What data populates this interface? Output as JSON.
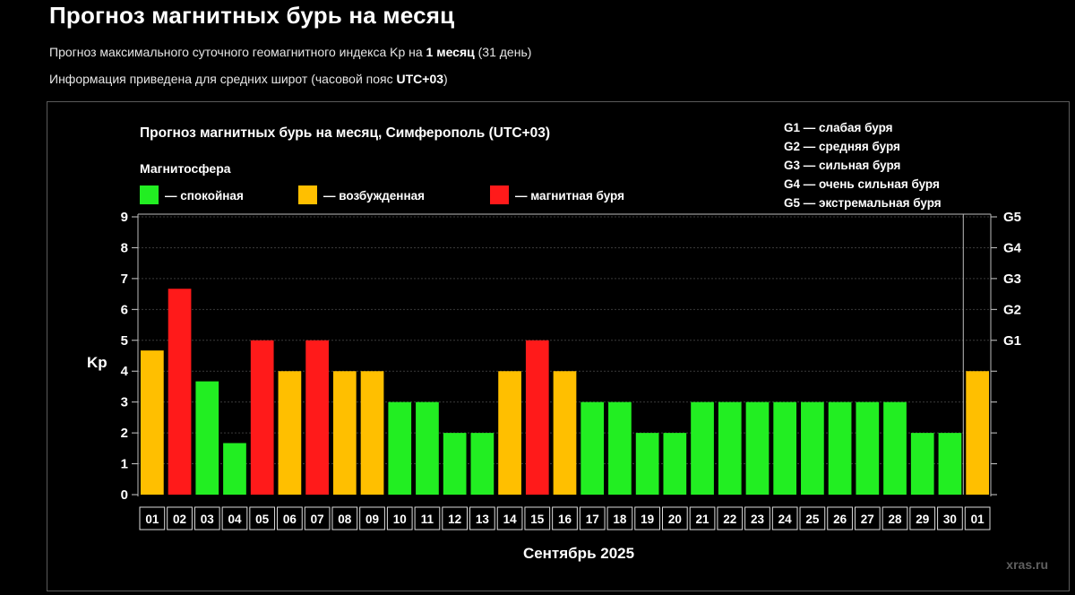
{
  "header": {
    "title": "Прогноз магнитных бурь на месяц",
    "subtitle1_prefix": "Прогноз максимального суточного геомагнитного индекса Kp на ",
    "subtitle1_bold": "1 месяц",
    "subtitle1_suffix": " (31 день)",
    "subtitle2_prefix": "Информация приведена для средних широт (часовой пояс ",
    "subtitle2_bold": "UTC+03",
    "subtitle2_suffix": ")"
  },
  "chart_data": {
    "type": "bar",
    "title": "Прогноз магнитных бурь на месяц, Симферополь (UTC+03)",
    "legend_title": "Магнитосфера",
    "legend": [
      {
        "key": "calm",
        "label": "— спокойная",
        "color": "#22ee22"
      },
      {
        "key": "excited",
        "label": "— возбужденная",
        "color": "#ffbf00"
      },
      {
        "key": "storm",
        "label": "— магнитная буря",
        "color": "#ff1a1a"
      }
    ],
    "storm_scale": [
      "G1 — слабая буря",
      "G2 — средняя буря",
      "G3 — сильная буря",
      "G4 — очень сильная буря",
      "G5 — экстремальная буря"
    ],
    "ylabel": "Kp",
    "xlabel": "Сентябрь 2025",
    "ylim": [
      0,
      9
    ],
    "yticks": [
      "0",
      "1",
      "2",
      "3",
      "4",
      "5",
      "6",
      "7",
      "8",
      "9"
    ],
    "right_axis_labels": [
      {
        "value": 5,
        "label": "G1"
      },
      {
        "value": 6,
        "label": "G2"
      },
      {
        "value": 7,
        "label": "G3"
      },
      {
        "value": 8,
        "label": "G4"
      },
      {
        "value": 9,
        "label": "G5"
      }
    ],
    "grid": true,
    "categories": [
      "01",
      "02",
      "03",
      "04",
      "05",
      "06",
      "07",
      "08",
      "09",
      "10",
      "11",
      "12",
      "13",
      "14",
      "15",
      "16",
      "17",
      "18",
      "19",
      "20",
      "21",
      "22",
      "23",
      "24",
      "25",
      "26",
      "27",
      "28",
      "29",
      "30",
      "01"
    ],
    "values": [
      4.67,
      6.67,
      3.67,
      1.67,
      5,
      4,
      5,
      4,
      4,
      3,
      3,
      2,
      2,
      4,
      5,
      4,
      3,
      3,
      2,
      2,
      3,
      3,
      3,
      3,
      3,
      3,
      3,
      3,
      2,
      2,
      4
    ],
    "levels": [
      "excited",
      "storm",
      "calm",
      "calm",
      "storm",
      "excited",
      "storm",
      "excited",
      "excited",
      "calm",
      "calm",
      "calm",
      "calm",
      "excited",
      "storm",
      "excited",
      "calm",
      "calm",
      "calm",
      "calm",
      "calm",
      "calm",
      "calm",
      "calm",
      "calm",
      "calm",
      "calm",
      "calm",
      "calm",
      "calm",
      "excited"
    ],
    "watermark": "xras.ru"
  }
}
